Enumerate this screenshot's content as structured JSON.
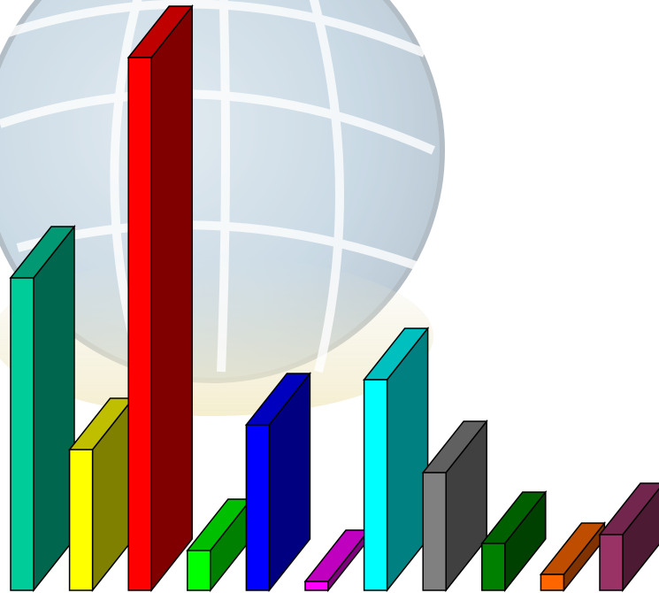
{
  "chart_data": {
    "type": "bar3d",
    "values": [
      353,
      159,
      602,
      45,
      187,
      10,
      238,
      133,
      53,
      18,
      63
    ],
    "colors": [
      "#00cc99",
      "#ffff00",
      "#ff0000",
      "#00ff00",
      "#0000ff",
      "#ff00ff",
      "#00ffff",
      "#808080",
      "#008000",
      "#ff6600",
      "#993366"
    ]
  }
}
